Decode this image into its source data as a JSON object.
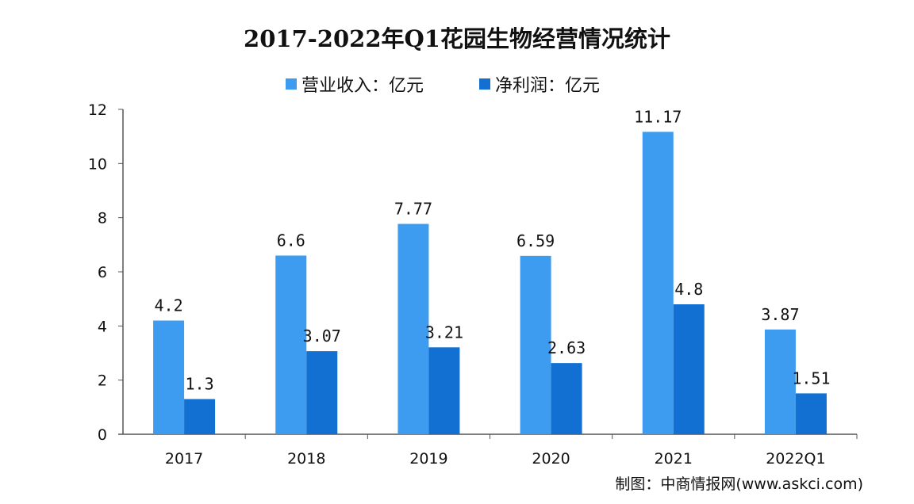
{
  "chart_data": {
    "type": "bar",
    "title": "2017-2022年Q1花园生物经营情况统计",
    "categories": [
      "2017",
      "2018",
      "2019",
      "2020",
      "2021",
      "2022Q1"
    ],
    "series": [
      {
        "name": "营业收入：亿元",
        "values": [
          4.2,
          6.6,
          7.77,
          6.59,
          11.17,
          3.87
        ],
        "color": "#3d9cf0"
      },
      {
        "name": "净利润：亿元",
        "values": [
          1.3,
          3.07,
          3.21,
          2.63,
          4.8,
          1.51
        ],
        "color": "#1170d2"
      }
    ],
    "ylim": [
      0,
      12
    ],
    "yticks": [
      0,
      2,
      4,
      6,
      8,
      10,
      12
    ],
    "grid": false,
    "legend": "top-center",
    "source": "制图：中商情报网(www.askci.com)"
  }
}
